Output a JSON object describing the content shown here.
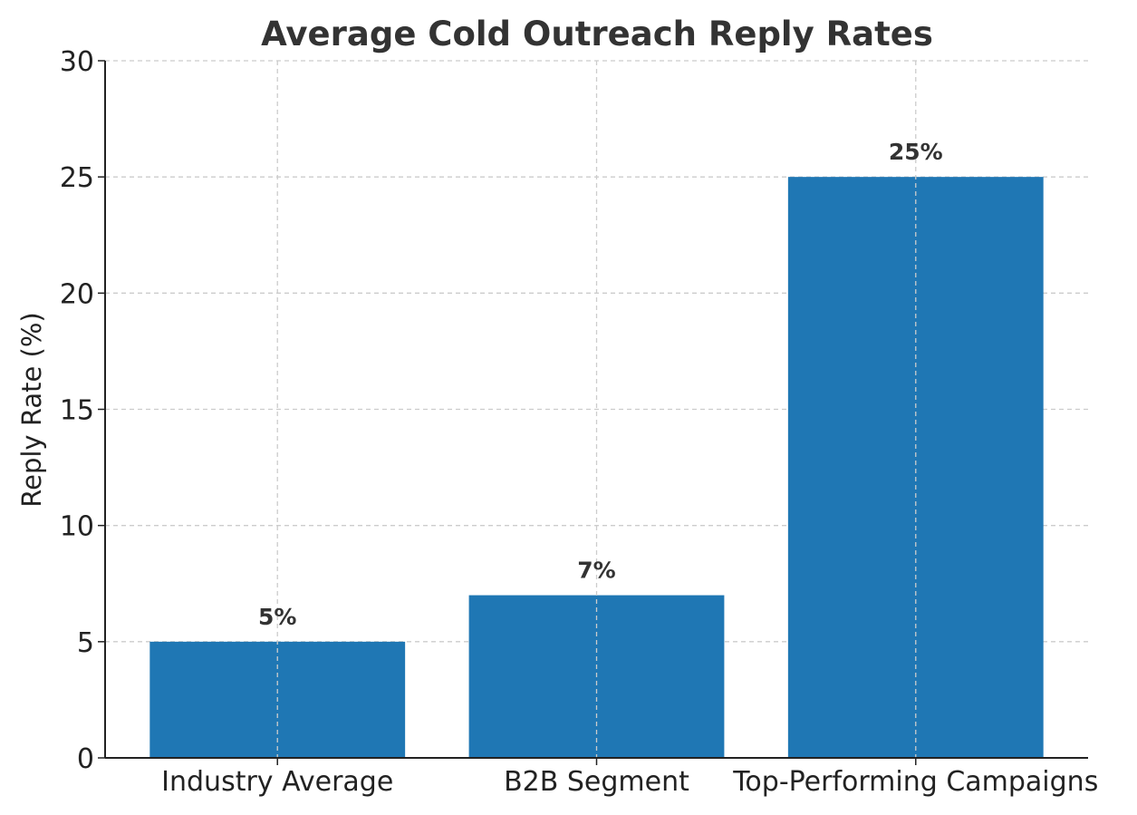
{
  "chart_data": {
    "type": "bar",
    "title": "Average Cold Outreach Reply Rates",
    "xlabel": "",
    "ylabel": "Reply Rate (%)",
    "categories": [
      "Industry Average",
      "B2B Segment",
      "Top-Performing Campaigns"
    ],
    "values": [
      5,
      7,
      25
    ],
    "data_labels": [
      "5%",
      "7%",
      "25%"
    ],
    "ylim": [
      0,
      30
    ],
    "yticks": [
      0,
      5,
      10,
      15,
      20,
      25,
      30
    ],
    "grid": true,
    "legend": "none",
    "colors": {
      "bar": "#1f77b4",
      "text": "#333333"
    }
  }
}
